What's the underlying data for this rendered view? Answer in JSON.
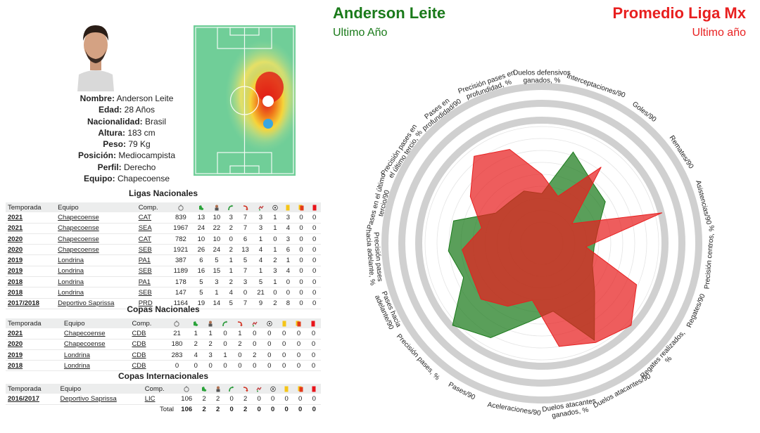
{
  "header": {
    "player_name": "Anderson Leite",
    "player_period": "Ultimo Año",
    "compare_name": "Promedio Liga Mx",
    "compare_period": "Ultimo año",
    "player_color": "#1a7a1a",
    "compare_color": "#e81f1f"
  },
  "profile": [
    {
      "label": "Nombre:",
      "value": "Anderson Leite"
    },
    {
      "label": "Edad:",
      "value": "28 Años"
    },
    {
      "label": "Nacionalidad:",
      "value": "Brasil"
    },
    {
      "label": "Altura:",
      "value": "183 cm"
    },
    {
      "label": "Peso:",
      "value": "79 Kg"
    },
    {
      "label": "Posición:",
      "value": "Mediocampista"
    },
    {
      "label": "Perfil:",
      "value": "Derecho"
    },
    {
      "label": "Equipo:",
      "value": "Chapecoense"
    }
  ],
  "icons": [
    "stopwatch-icon",
    "boot-icon",
    "player-icon",
    "assist-arrow-icon",
    "cross-arrow-icon",
    "dribble-icon",
    "ball-icon",
    "yellow-card-icon",
    "yellow-red-card-icon",
    "red-card-icon"
  ],
  "ligas": {
    "title": "Ligas Nacionales",
    "headers": [
      "Temporada",
      "Equipo",
      "Comp."
    ],
    "rows": [
      {
        "season": "2021",
        "team": "Chapecoense",
        "comp": "CAT",
        "vals": [
          "839",
          "13",
          "10",
          "3",
          "7",
          "3",
          "1",
          "3",
          "0",
          "0"
        ]
      },
      {
        "season": "2021",
        "team": "Chapecoense",
        "comp": "SEA",
        "vals": [
          "1967",
          "24",
          "22",
          "2",
          "7",
          "3",
          "1",
          "4",
          "0",
          "0"
        ]
      },
      {
        "season": "2020",
        "team": "Chapecoense",
        "comp": "CAT",
        "vals": [
          "782",
          "10",
          "10",
          "0",
          "6",
          "1",
          "0",
          "3",
          "0",
          "0"
        ]
      },
      {
        "season": "2020",
        "team": "Chapecoense",
        "comp": "SEB",
        "vals": [
          "1921",
          "26",
          "24",
          "2",
          "13",
          "4",
          "1",
          "6",
          "0",
          "0"
        ]
      },
      {
        "season": "2019",
        "team": "Londrina",
        "comp": "PA1",
        "vals": [
          "387",
          "6",
          "5",
          "1",
          "5",
          "4",
          "2",
          "1",
          "0",
          "0"
        ]
      },
      {
        "season": "2019",
        "team": "Londrina",
        "comp": "SEB",
        "vals": [
          "1189",
          "16",
          "15",
          "1",
          "7",
          "1",
          "3",
          "4",
          "0",
          "0"
        ]
      },
      {
        "season": "2018",
        "team": "Londrina",
        "comp": "PA1",
        "vals": [
          "178",
          "5",
          "3",
          "2",
          "3",
          "5",
          "1",
          "0",
          "0",
          "0"
        ]
      },
      {
        "season": "2018",
        "team": "Londrina",
        "comp": "SEB",
        "vals": [
          "147",
          "5",
          "1",
          "4",
          "0",
          "21",
          "0",
          "0",
          "0",
          "0"
        ]
      },
      {
        "season": "2017/2018",
        "team": "Deportivo Saprissa",
        "comp": "PRD",
        "vals": [
          "1164",
          "19",
          "14",
          "5",
          "7",
          "9",
          "2",
          "8",
          "0",
          "0"
        ]
      }
    ]
  },
  "copas": {
    "title": "Copas Nacionales",
    "headers": [
      "Temporada",
      "Equipo",
      "Comp."
    ],
    "rows": [
      {
        "season": "2021",
        "team": "Chapecoense",
        "comp": "CDB",
        "vals": [
          "21",
          "1",
          "1",
          "0",
          "1",
          "0",
          "0",
          "0",
          "0",
          "0"
        ]
      },
      {
        "season": "2020",
        "team": "Chapecoense",
        "comp": "CDB",
        "vals": [
          "180",
          "2",
          "2",
          "0",
          "2",
          "0",
          "0",
          "0",
          "0",
          "0"
        ]
      },
      {
        "season": "2019",
        "team": "Londrina",
        "comp": "CDB",
        "vals": [
          "283",
          "4",
          "3",
          "1",
          "0",
          "2",
          "0",
          "0",
          "0",
          "0"
        ]
      },
      {
        "season": "2018",
        "team": "Londrina",
        "comp": "CDB",
        "vals": [
          "0",
          "0",
          "0",
          "0",
          "0",
          "0",
          "0",
          "0",
          "0",
          "0"
        ]
      }
    ]
  },
  "internacionales": {
    "title": "Copas Internacionales",
    "headers": [
      "Temporada",
      "Equipo",
      "Comp."
    ],
    "rows": [
      {
        "season": "2016/2017",
        "team": "Deportivo Saprissa",
        "comp": "LIC",
        "vals": [
          "106",
          "2",
          "2",
          "0",
          "2",
          "0",
          "0",
          "0",
          "0",
          "0"
        ]
      }
    ],
    "total_label": "Total",
    "total_vals": [
      "106",
      "2",
      "2",
      "0",
      "2",
      "0",
      "0",
      "0",
      "0",
      "0"
    ]
  },
  "chart_data": {
    "type": "radar",
    "axes": [
      "Duelos defensivos ganados, %",
      "Interceptaciones/90",
      "Goles/90",
      "Remates/90",
      "Asistencias/90",
      "Precisión centros, %",
      "Regates/90",
      "Regates realizados, %",
      "Duelos atacantes/90",
      "Duelos atacantes ganados, %",
      "Aceleraciones/90",
      "Pases/90",
      "Precisión pases, %",
      "Pases hacia adelante/90",
      "Precisión pases hacia adelante, %",
      "Pases en el último tercio/90",
      "Precisión pases en el último tercio, %",
      "Pases en profundidad/90",
      "Precisión pases en profundidad, %"
    ],
    "ring_count": 9,
    "series": [
      {
        "name": "Anderson Leite",
        "color": "#1a7a1a",
        "values": [
          0.36,
          0.7,
          0.58,
          0.55,
          0.42,
          0.38,
          0.4,
          0.52,
          0.8,
          0.5,
          0.58,
          0.78,
          0.88,
          0.62,
          0.68,
          0.66,
          0.4,
          0.38,
          0.4
        ]
      },
      {
        "name": "Promedio Liga Mx",
        "color": "#e81f1f",
        "values": [
          0.5,
          0.36,
          0.7,
          0.26,
          0.9,
          0.32,
          0.75,
          0.88,
          0.82,
          0.76,
          0.42,
          0.52,
          0.6,
          0.56,
          0.58,
          0.45,
          0.62,
          0.8,
          0.72
        ]
      }
    ]
  }
}
